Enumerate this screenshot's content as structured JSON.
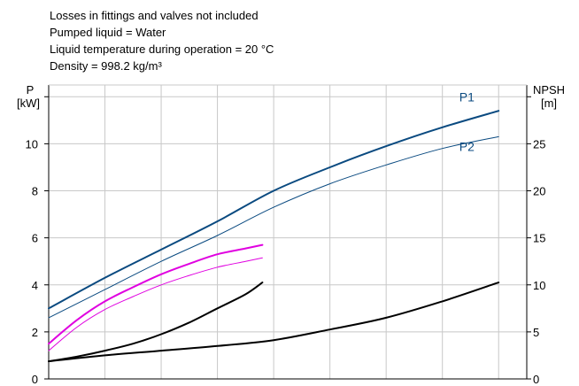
{
  "notes": [
    "Losses in fittings and valves not included",
    "Pumped liquid = Water",
    "Liquid temperature during operation = 20 °C",
    "Density = 998.2 kg/m³"
  ],
  "chart_data": {
    "type": "line",
    "title": "",
    "left_axis": {
      "label_line1": "P",
      "label_line2": "[kW]",
      "range": [
        0,
        12.5
      ],
      "ticks": [
        0,
        2,
        4,
        6,
        8,
        10,
        12
      ],
      "labeled_ticks": [
        "0",
        "2",
        "4",
        "6",
        "8",
        "10"
      ]
    },
    "right_axis": {
      "label_line1": "NPSH",
      "label_line2": "[m]",
      "range": [
        0,
        31.25
      ],
      "ticks": [
        0,
        5,
        10,
        15,
        20,
        25,
        30
      ],
      "labeled_ticks": [
        "0",
        "5",
        "10",
        "15",
        "20",
        "25"
      ]
    },
    "x_axis": {
      "range": [
        0,
        8.5
      ],
      "grid": [
        0,
        1,
        2,
        3,
        4,
        5,
        6,
        7,
        8
      ],
      "tick_labels": []
    },
    "grid": true,
    "series": [
      {
        "name": "P1",
        "axis": "left",
        "color": "#0a4a80",
        "width": 2,
        "x": [
          0,
          1,
          2,
          3,
          4,
          5,
          6,
          7,
          8
        ],
        "y": [
          3.0,
          4.3,
          5.5,
          6.7,
          8.0,
          9.0,
          9.9,
          10.7,
          11.4
        ]
      },
      {
        "name": "P2",
        "axis": "left",
        "color": "#0a4a80",
        "width": 1,
        "x": [
          0,
          1,
          2,
          3,
          4,
          5,
          6,
          7,
          8
        ],
        "y": [
          2.6,
          3.8,
          5.0,
          6.1,
          7.3,
          8.3,
          9.1,
          9.8,
          10.3
        ]
      },
      {
        "name": "",
        "axis": "left",
        "color": "#e000e0",
        "width": 2,
        "x": [
          0,
          0.5,
          1,
          1.5,
          2,
          2.5,
          3,
          3.5,
          3.8
        ],
        "y": [
          1.5,
          2.5,
          3.3,
          3.9,
          4.45,
          4.9,
          5.3,
          5.55,
          5.7
        ]
      },
      {
        "name": "",
        "axis": "left",
        "color": "#e000e0",
        "width": 1,
        "x": [
          0,
          0.5,
          1,
          1.5,
          2,
          2.5,
          3,
          3.5,
          3.8
        ],
        "y": [
          1.2,
          2.2,
          2.95,
          3.5,
          4.0,
          4.4,
          4.75,
          5.0,
          5.15
        ]
      },
      {
        "name": "",
        "axis": "left",
        "color": "#000000",
        "width": 2,
        "x": [
          0,
          0.5,
          1,
          1.5,
          2,
          2.5,
          3,
          3.5,
          3.8
        ],
        "y": [
          0.75,
          0.95,
          1.2,
          1.5,
          1.9,
          2.4,
          3.0,
          3.6,
          4.1
        ]
      },
      {
        "name": "",
        "axis": "left",
        "color": "#000000",
        "width": 2,
        "x": [
          0,
          1,
          2,
          3,
          4,
          5,
          6,
          7,
          8
        ],
        "y": [
          0.75,
          1.0,
          1.2,
          1.4,
          1.65,
          2.1,
          2.6,
          3.3,
          4.1
        ]
      }
    ],
    "series_labels": [
      {
        "text": "P1",
        "color": "#0a4a80",
        "x": 7.3,
        "y": 11.8
      },
      {
        "text": "P2",
        "color": "#0a4a80",
        "x": 7.3,
        "y": 9.7
      }
    ]
  }
}
